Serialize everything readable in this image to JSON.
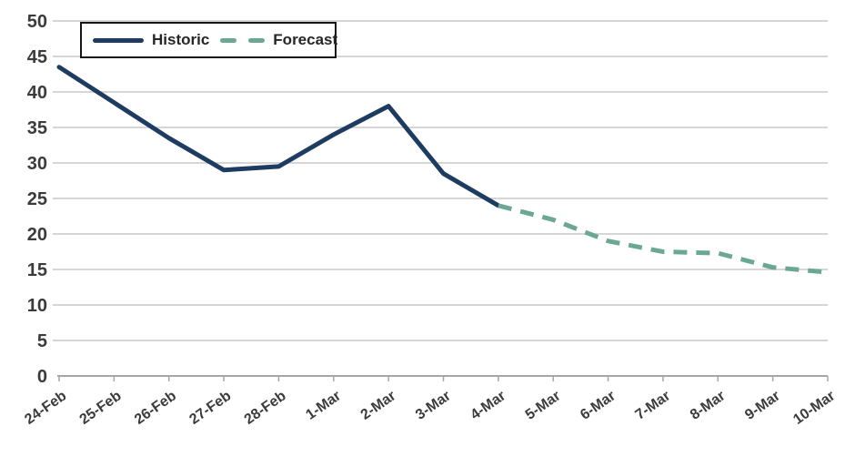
{
  "chart_data": {
    "type": "line",
    "title": "",
    "xlabel": "",
    "ylabel": "",
    "categories": [
      "24-Feb",
      "25-Feb",
      "26-Feb",
      "27-Feb",
      "28-Feb",
      "1-Mar",
      "2-Mar",
      "3-Mar",
      "4-Mar",
      "5-Mar",
      "6-Mar",
      "7-Mar",
      "8-Mar",
      "9-Mar",
      "10-Mar"
    ],
    "series": [
      {
        "name": "Historic",
        "style": "solid",
        "color": "#1e3c61",
        "values": [
          43.5,
          38.5,
          33.5,
          29,
          29.5,
          34,
          38,
          28.5,
          24,
          null,
          null,
          null,
          null,
          null,
          null
        ]
      },
      {
        "name": "Forecast",
        "style": "dashed",
        "color": "#6ba893",
        "values": [
          null,
          null,
          null,
          null,
          null,
          null,
          null,
          null,
          24,
          22,
          19,
          17.5,
          17.3,
          15.3,
          14.6
        ]
      }
    ],
    "ylim": [
      0,
      50
    ],
    "yticks": [
      0,
      5,
      10,
      15,
      20,
      25,
      30,
      35,
      40,
      45,
      50
    ],
    "grid": true,
    "grid_color": "#c9c9c9",
    "axis_color": "#a6a6a6",
    "tick_label_color": "#3b3b3b",
    "legend_position": "top-left",
    "legend_border_color": "#161616"
  }
}
